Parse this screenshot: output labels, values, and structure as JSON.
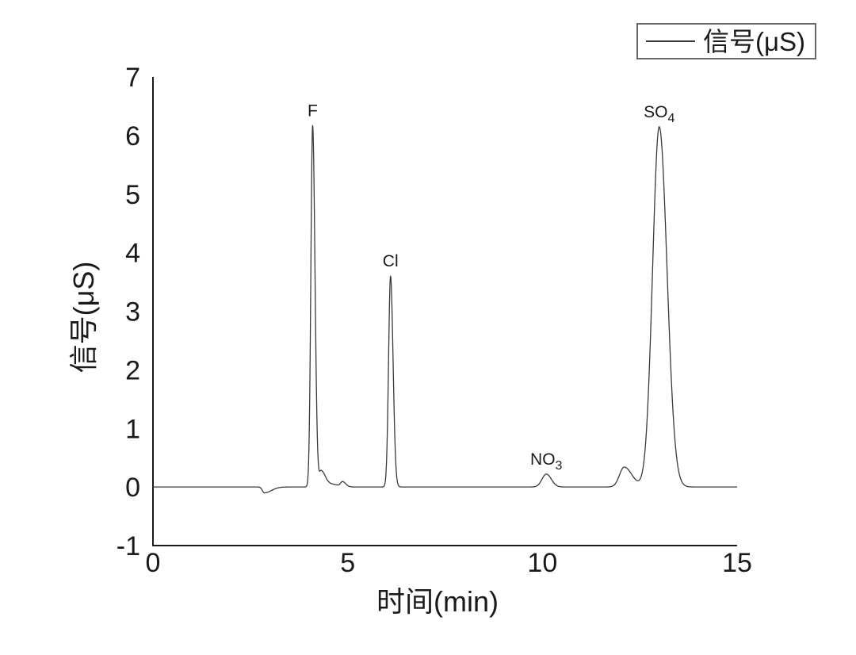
{
  "figure": {
    "background": "#ffffff",
    "axis_color": "#1a1a1a",
    "text_color": "#1a1a1a"
  },
  "legend": {
    "label": "信号(μS)",
    "border_color": "#666666"
  },
  "chart_data": {
    "type": "line",
    "title": "",
    "xlabel": "时间(min)",
    "ylabel": "信号(μS)",
    "series": [
      {
        "name": "信号(μS)",
        "color": "#3a3a3a"
      }
    ],
    "xlim": [
      0,
      15
    ],
    "ylim": [
      -1,
      7
    ],
    "xticks": [
      0,
      5,
      10,
      15
    ],
    "yticks": [
      -1,
      0,
      1,
      2,
      3,
      4,
      5,
      6,
      7
    ],
    "grid": false,
    "legend_position": "top-right",
    "baseline_uS": 0,
    "peaks": [
      {
        "label_main": "F",
        "label_sub": "",
        "t_min": 4.1,
        "height_uS": 6.17,
        "sigma_left": 0.045,
        "sigma_right": 0.06
      },
      {
        "label_main": "Cl",
        "label_sub": "",
        "t_min": 6.1,
        "height_uS": 3.6,
        "sigma_left": 0.05,
        "sigma_right": 0.065
      },
      {
        "label_main": "NO",
        "label_sub": "3",
        "t_min": 10.1,
        "height_uS": 0.22,
        "sigma_left": 0.11,
        "sigma_right": 0.13
      },
      {
        "label_main": "",
        "label_sub": "",
        "t_min": 12.1,
        "height_uS": 0.34,
        "sigma_left": 0.12,
        "sigma_right": 0.2
      },
      {
        "label_main": "SO",
        "label_sub": "4",
        "t_min": 13.0,
        "height_uS": 6.15,
        "sigma_left": 0.17,
        "sigma_right": 0.2
      }
    ],
    "minor_features": [
      {
        "name": "baseline-dip",
        "t_min": 2.86,
        "height_uS": -0.1,
        "sigma_left": 0.05,
        "sigma_right": 0.18
      },
      {
        "name": "f-peak-shoulder",
        "t_min": 4.32,
        "height_uS": 0.27,
        "sigma_left": 0.05,
        "sigma_right": 0.1
      },
      {
        "name": "f-peak-tail",
        "t_min": 4.55,
        "height_uS": 0.05,
        "sigma_left": 0.12,
        "sigma_right": 0.2
      },
      {
        "name": "small-bump",
        "t_min": 4.87,
        "height_uS": 0.08,
        "sigma_left": 0.05,
        "sigma_right": 0.08
      }
    ]
  }
}
